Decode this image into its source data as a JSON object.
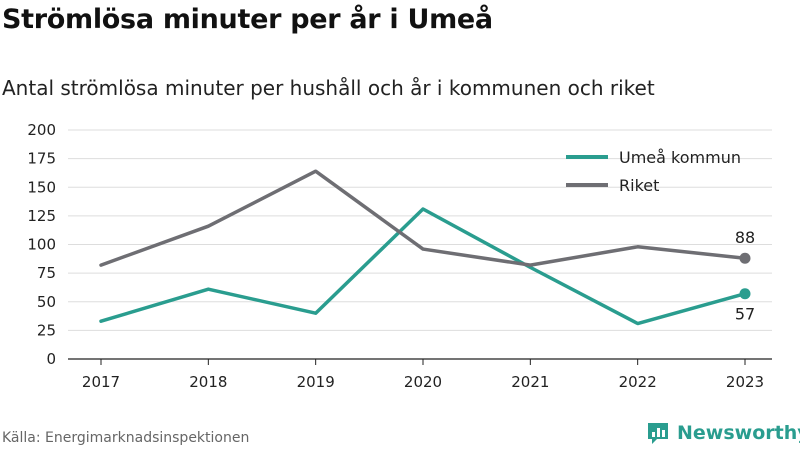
{
  "title": "Strömlösa minuter per år i Umeå",
  "subtitle": "Antal strömlösa minuter per hushåll och år i kommunen och riket",
  "source": "Källa: Energimarknadsinspektionen",
  "brand": "Newsworthy",
  "colors": {
    "umea": "#2a9d8f",
    "riket": "#6e6e73",
    "grid": "#dddddd",
    "brand": "#2a9d8f"
  },
  "chart_data": {
    "type": "line",
    "x": [
      "2017",
      "2018",
      "2019",
      "2020",
      "2021",
      "2022",
      "2023"
    ],
    "ylim": [
      0,
      200
    ],
    "yticks": [
      "0",
      "25",
      "50",
      "75",
      "100",
      "125",
      "150",
      "175",
      "200"
    ],
    "legend_position": "top-right",
    "grid": true,
    "series": [
      {
        "name": "Umeå kommun",
        "color": "#2a9d8f",
        "values": [
          33,
          61,
          40,
          131,
          80,
          31,
          57
        ],
        "end_label": "57"
      },
      {
        "name": "Riket",
        "color": "#6e6e73",
        "values": [
          82,
          116,
          164,
          96,
          82,
          98,
          88
        ],
        "end_label": "88"
      }
    ]
  }
}
